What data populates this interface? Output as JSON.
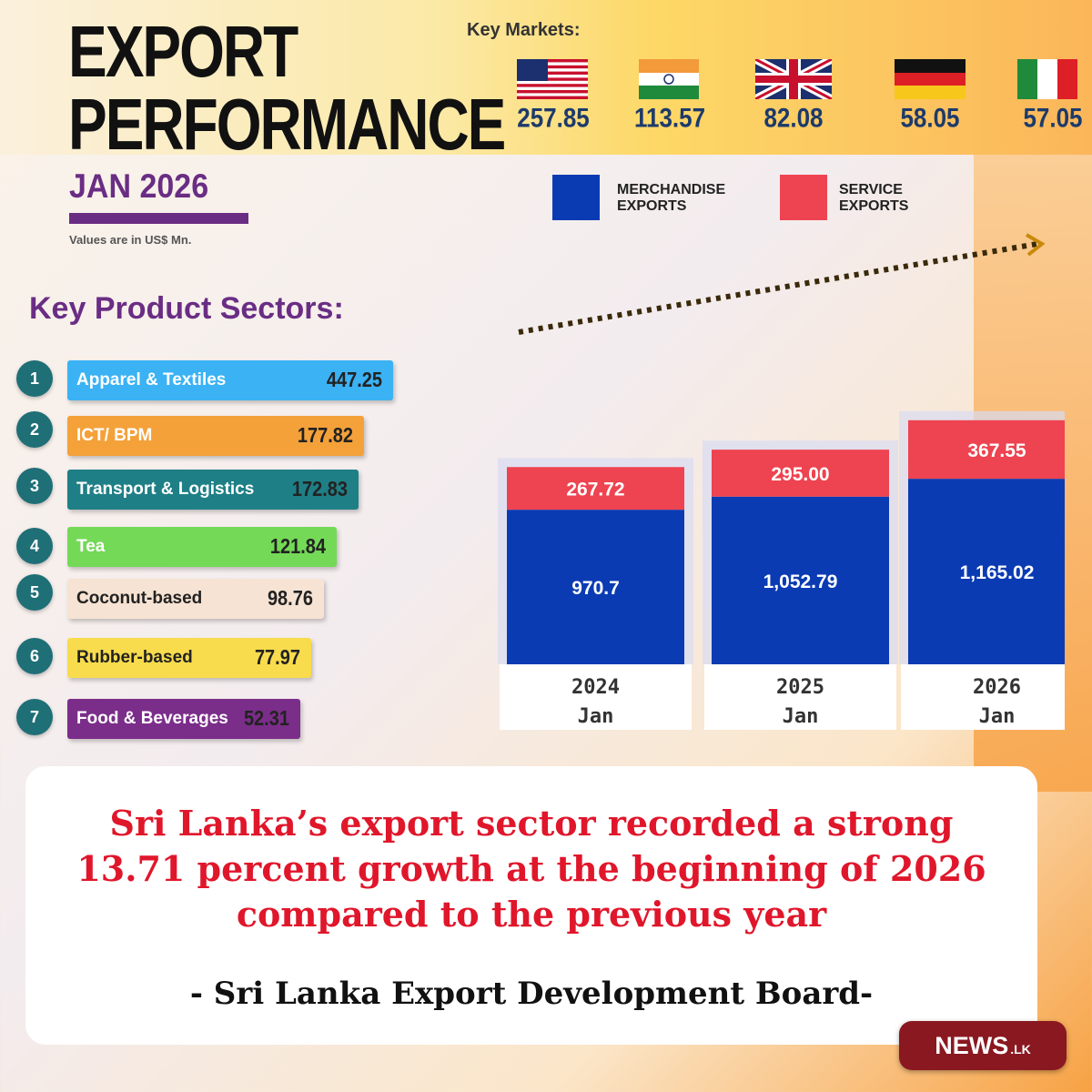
{
  "header": {
    "title_line1": "EXPORT",
    "title_line2": "PERFORMANCE",
    "period": "JAN 2026",
    "units_note": "Values are in US$ Mn."
  },
  "key_markets": {
    "label": "Key Markets:",
    "items": [
      {
        "flag": "usa-flag-icon",
        "value": "257.85"
      },
      {
        "flag": "india-flag-icon",
        "value": "113.57"
      },
      {
        "flag": "uk-flag-icon",
        "value": "82.08"
      },
      {
        "flag": "germany-flag-icon",
        "value": "58.05"
      },
      {
        "flag": "italy-flag-icon",
        "value": "57.05"
      }
    ]
  },
  "legend": {
    "merch_line1": "MERCHANDISE",
    "merch_line2": "EXPORTS",
    "serv_line1": "SERVICE",
    "serv_line2": "EXPORTS"
  },
  "sectors": {
    "title": "Key Product Sectors:",
    "items": [
      {
        "rank": "1",
        "label": "Apparel & Textiles",
        "value": "447.25",
        "color": "#3bb2f4",
        "text_color": "#ffffff"
      },
      {
        "rank": "2",
        "label": "ICT/ BPM",
        "value": "177.82",
        "color": "#f4a13a",
        "text_color": "#ffffff"
      },
      {
        "rank": "3",
        "label": "Transport & Logistics",
        "value": "172.83",
        "color": "#1f7f86",
        "text_color": "#ffffff"
      },
      {
        "rank": "4",
        "label": "Tea",
        "value": "121.84",
        "color": "#74d957",
        "text_color": "#ffffff"
      },
      {
        "rank": "5",
        "label": "Coconut-based",
        "value": "98.76",
        "color": "#f7e3d3",
        "text_color": "#222222"
      },
      {
        "rank": "6",
        "label": "Rubber-based",
        "value": "77.97",
        "color": "#f8dc4d",
        "text_color": "#222222"
      },
      {
        "rank": "7",
        "label": "Food & Beverages",
        "value": "52.31",
        "color": "#7b2d8a",
        "text_color": "#ffffff"
      }
    ]
  },
  "chart_data": {
    "type": "bar",
    "stacked": true,
    "categories": [
      "2024 Jan",
      "2025 Jan",
      "2026 Jan"
    ],
    "category_year": [
      "2024",
      "2025",
      "2026"
    ],
    "category_month": [
      "Jan",
      "Jan",
      "Jan"
    ],
    "series": [
      {
        "name": "MERCHANDISE EXPORTS",
        "values": [
          970.7,
          1052.79,
          1165.02
        ],
        "labels": [
          "970.7",
          "1,052.79",
          "1,165.02"
        ],
        "color": "#0a3bb3"
      },
      {
        "name": "SERVICE EXPORTS",
        "values": [
          267.72,
          295.0,
          367.55
        ],
        "labels": [
          "267.72",
          "295.00",
          "367.55"
        ],
        "color": "#ee4350"
      }
    ],
    "ylim": [
      0,
      1650
    ],
    "grid": false,
    "legend": "top",
    "trend_arrow": true,
    "title": "",
    "xlabel": "",
    "ylabel": ""
  },
  "caption": {
    "line1": "Sri Lanka’s export sector recorded a strong",
    "line2": "13.71 percent growth at the beginning of 2026",
    "line3": "compared to the previous year",
    "source": "- Sri Lanka Export Development Board-"
  },
  "brand": {
    "main": "NEWS",
    "sub": ".LK"
  }
}
